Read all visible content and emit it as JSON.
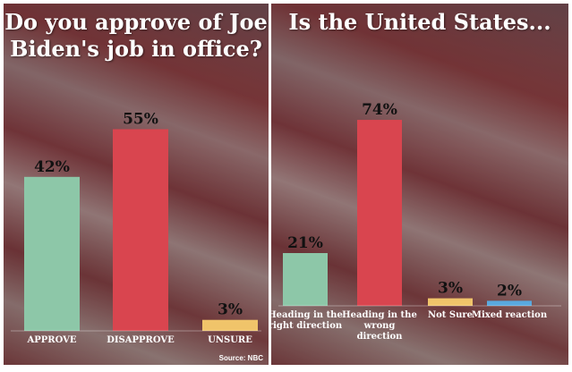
{
  "colors": {
    "green": "#8dc7a8",
    "red": "#d9454f",
    "yellow": "#f0c46a",
    "blue": "#59a9df"
  },
  "source": "Source: NBC",
  "chart_data": [
    {
      "type": "bar",
      "title": "Do you approve of Joe Biden's job in office?",
      "categories": [
        "APPROVE",
        "DISAPPROVE",
        "UNSURE"
      ],
      "values": [
        42,
        55,
        3
      ],
      "value_labels": [
        "42%",
        "55%",
        "3%"
      ],
      "bar_colors": [
        "#8dc7a8",
        "#d9454f",
        "#f0c46a"
      ],
      "ylim": [
        0,
        100
      ],
      "grid": false
    },
    {
      "type": "bar",
      "title": "Is the United States...",
      "categories": [
        "Heading in the right direction",
        "Heading in the wrong direction",
        "Not Sure",
        "Mixed reaction"
      ],
      "category_lines": [
        [
          "Heading in the",
          "right direction"
        ],
        [
          "Heading in the",
          "wrong",
          "direction"
        ],
        [
          "Not Sure"
        ],
        [
          "Mixed reaction"
        ]
      ],
      "values": [
        21,
        74,
        3,
        2
      ],
      "value_labels": [
        "21%",
        "74%",
        "3%",
        "2%"
      ],
      "bar_colors": [
        "#8dc7a8",
        "#d9454f",
        "#f0c46a",
        "#59a9df"
      ],
      "ylim": [
        0,
        100
      ],
      "grid": false
    }
  ]
}
